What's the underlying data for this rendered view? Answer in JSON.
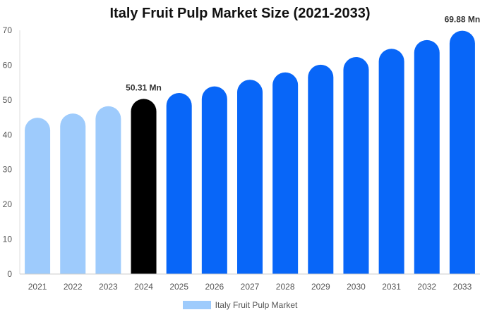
{
  "chart_data": {
    "type": "bar",
    "title": "Italy Fruit Pulp Market Size (2021-2033)",
    "categories": [
      "2021",
      "2022",
      "2023",
      "2024",
      "2025",
      "2026",
      "2027",
      "2028",
      "2029",
      "2030",
      "2031",
      "2032",
      "2033"
    ],
    "series": [
      {
        "name": "Italy Fruit Pulp Market",
        "values": [
          44.9,
          46.1,
          48.2,
          50.31,
          52.0,
          53.9,
          55.8,
          57.9,
          60.1,
          62.3,
          64.7,
          67.2,
          69.88
        ]
      }
    ],
    "data_labels": [
      {
        "category": "2024",
        "text": "50.31 Mn"
      },
      {
        "category": "2033",
        "text": "69.88 Mn"
      }
    ],
    "ylim": [
      0,
      70
    ],
    "yticks": [
      0,
      10,
      20,
      30,
      40,
      50,
      60,
      70
    ],
    "grid": false,
    "legend_position": "bottom",
    "colors": {
      "historical": "#9ecbfc",
      "current": "#000000",
      "forecast": "#0866f8"
    },
    "bar_color_groups": [
      "historical",
      "historical",
      "historical",
      "current",
      "forecast",
      "forecast",
      "forecast",
      "forecast",
      "forecast",
      "forecast",
      "forecast",
      "forecast",
      "forecast"
    ]
  }
}
